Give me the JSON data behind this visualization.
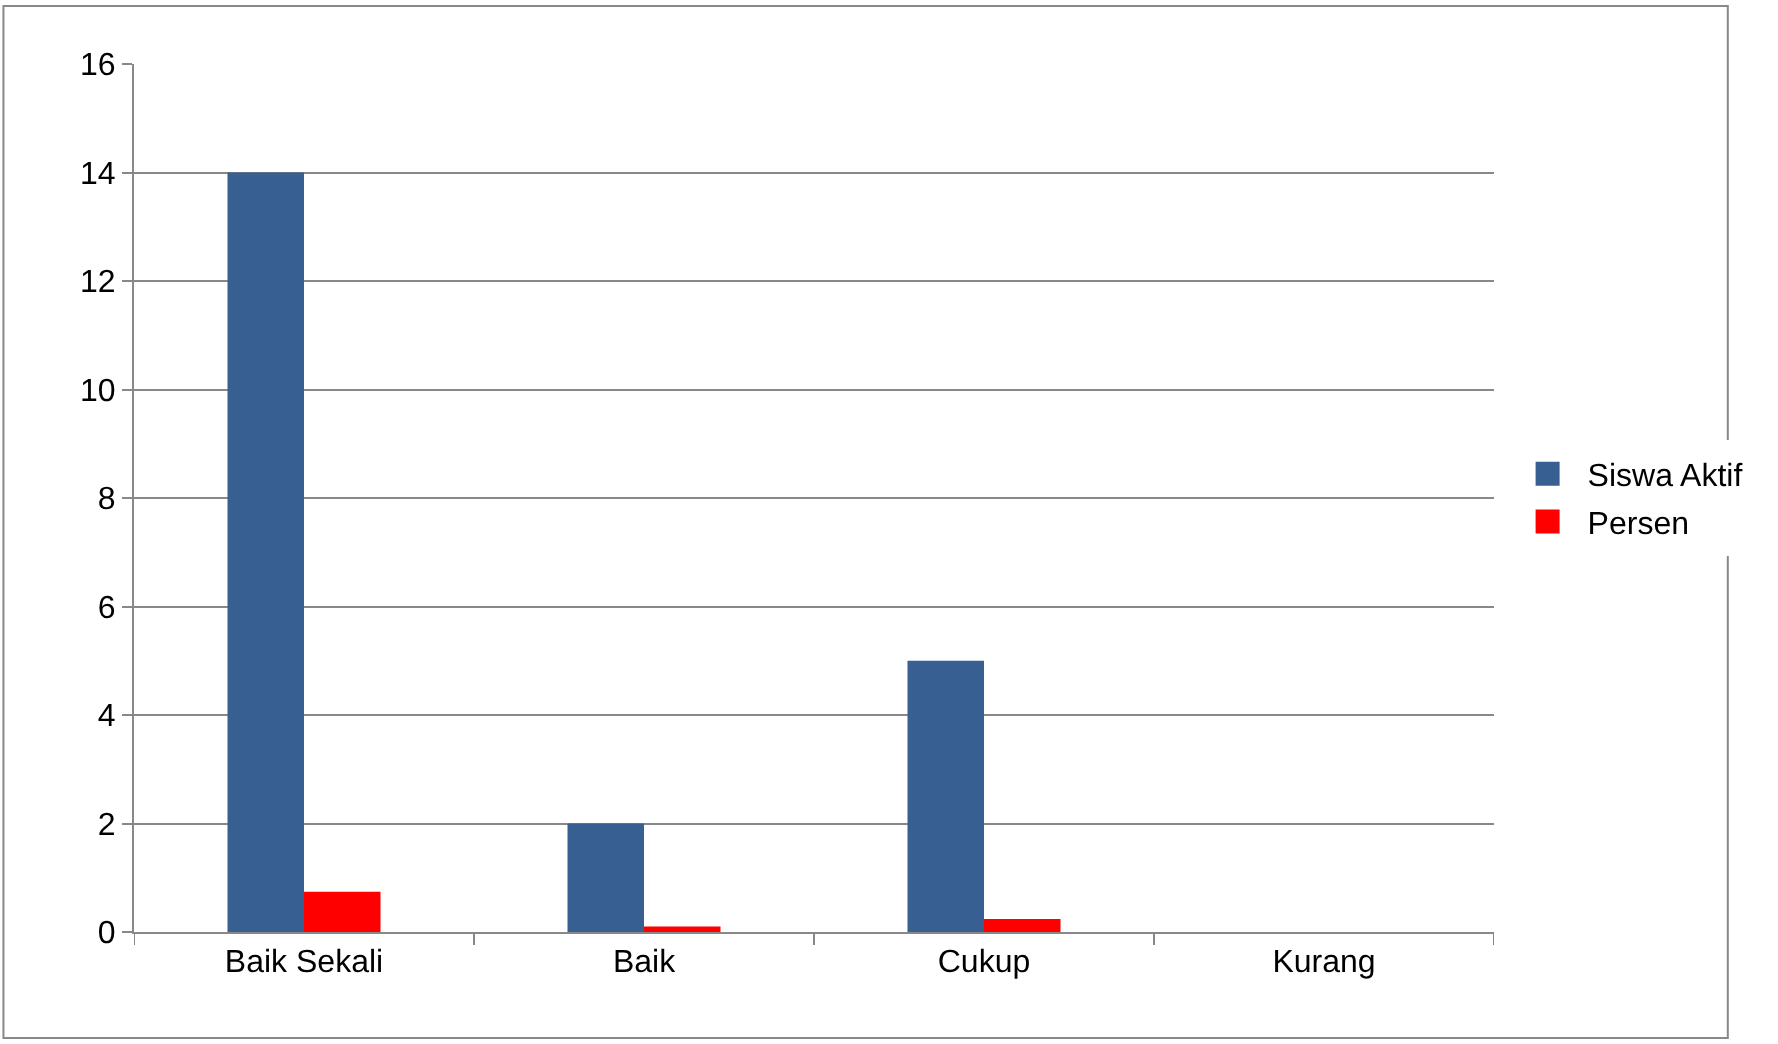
{
  "chart_data": {
    "type": "bar",
    "categories": [
      "Baik Sekali",
      "Baik",
      "Cukup",
      "Kurang"
    ],
    "series": [
      {
        "name": "Siswa Aktif",
        "color": "#375f91",
        "values": [
          14,
          2,
          5,
          0
        ]
      },
      {
        "name": "Persen",
        "color": "#ff0000",
        "values": [
          0.74,
          0.1,
          0.24,
          0
        ]
      }
    ],
    "ylim": [
      0,
      16
    ],
    "yticks": [
      0,
      2,
      4,
      6,
      8,
      10,
      12,
      14,
      16
    ],
    "grid": "y",
    "legend": "right"
  }
}
